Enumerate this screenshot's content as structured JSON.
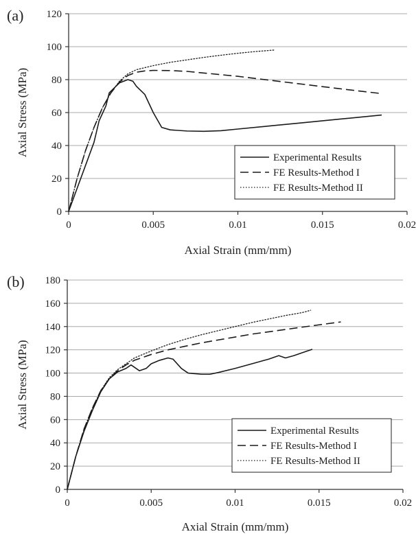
{
  "chart_data": [
    {
      "type": "line",
      "panel_label": "(a)",
      "xlabel": "Axial Strain (mm/mm)",
      "ylabel": "Axial Stress (MPa)",
      "xlim": [
        0,
        0.02
      ],
      "ylim": [
        0,
        120
      ],
      "xticks": [
        0,
        0.005,
        0.01,
        0.015,
        0.02
      ],
      "xtick_labels": [
        "0",
        "0.005",
        "0.01",
        "0.015",
        "0.02"
      ],
      "yticks": [
        0,
        20,
        40,
        60,
        80,
        100,
        120
      ],
      "ytick_labels": [
        "0",
        "20",
        "40",
        "60",
        "80",
        "100",
        "120"
      ],
      "grid": "horizontal",
      "legend_position": "bottom-right",
      "series": [
        {
          "name": "Experimental Results",
          "style": "solid",
          "points": [
            [
              0,
              0
            ],
            [
              0.0005,
              14
            ],
            [
              0.001,
              28
            ],
            [
              0.0015,
              42
            ],
            [
              0.0018,
              55
            ],
            [
              0.0022,
              64
            ],
            [
              0.0024,
              72
            ],
            [
              0.003,
              78
            ],
            [
              0.0035,
              80
            ],
            [
              0.0038,
              79
            ],
            [
              0.004,
              76
            ],
            [
              0.0045,
              71
            ],
            [
              0.005,
              60
            ],
            [
              0.0055,
              51
            ],
            [
              0.006,
              49.5
            ],
            [
              0.007,
              48.8
            ],
            [
              0.008,
              48.6
            ],
            [
              0.009,
              49
            ],
            [
              0.01,
              50
            ],
            [
              0.012,
              52
            ],
            [
              0.014,
              54
            ],
            [
              0.016,
              56
            ],
            [
              0.0185,
              58.5
            ]
          ]
        },
        {
          "name": "FE Results-Method I",
          "style": "dashed",
          "points": [
            [
              0,
              0
            ],
            [
              0.0005,
              20
            ],
            [
              0.001,
              37
            ],
            [
              0.0015,
              51
            ],
            [
              0.002,
              63
            ],
            [
              0.0025,
              72
            ],
            [
              0.003,
              78.5
            ],
            [
              0.0035,
              82.5
            ],
            [
              0.004,
              84.5
            ],
            [
              0.0045,
              85.3
            ],
            [
              0.005,
              85.6
            ],
            [
              0.006,
              85.5
            ],
            [
              0.007,
              85
            ],
            [
              0.008,
              84
            ],
            [
              0.01,
              82
            ],
            [
              0.012,
              79.5
            ],
            [
              0.014,
              77
            ],
            [
              0.016,
              74.5
            ],
            [
              0.0185,
              71.5
            ]
          ]
        },
        {
          "name": "FE Results-Method II",
          "style": "dotted",
          "points": [
            [
              0,
              0
            ],
            [
              0.0005,
              20
            ],
            [
              0.001,
              37
            ],
            [
              0.0015,
              51
            ],
            [
              0.002,
              63
            ],
            [
              0.0025,
              72
            ],
            [
              0.003,
              79
            ],
            [
              0.0035,
              83.5
            ],
            [
              0.004,
              86
            ],
            [
              0.005,
              88.5
            ],
            [
              0.006,
              90.5
            ],
            [
              0.007,
              92
            ],
            [
              0.008,
              93.5
            ],
            [
              0.009,
              94.8
            ],
            [
              0.01,
              96
            ],
            [
              0.011,
              97
            ],
            [
              0.0122,
              98
            ]
          ]
        }
      ]
    },
    {
      "type": "line",
      "panel_label": "(b)",
      "xlabel": "Axial Strain (mm/mm)",
      "ylabel": "Axial Stress (MPa)",
      "xlim": [
        0,
        0.02
      ],
      "ylim": [
        0,
        180
      ],
      "xticks": [
        0,
        0.005,
        0.01,
        0.015,
        0.02
      ],
      "xtick_labels": [
        "0",
        "0.005",
        "0.01",
        "0.015",
        "0.02"
      ],
      "yticks": [
        0,
        20,
        40,
        60,
        80,
        100,
        120,
        140,
        160,
        180
      ],
      "ytick_labels": [
        "0",
        "20",
        "40",
        "60",
        "80",
        "100",
        "120",
        "140",
        "160",
        "180"
      ],
      "grid": "horizontal",
      "legend_position": "bottom-right",
      "series": [
        {
          "name": "Experimental Results",
          "style": "solid",
          "points": [
            [
              0,
              0
            ],
            [
              0.0005,
              28
            ],
            [
              0.001,
              50
            ],
            [
              0.0015,
              68
            ],
            [
              0.002,
              84
            ],
            [
              0.0025,
              95
            ],
            [
              0.003,
              101
            ],
            [
              0.0035,
              104
            ],
            [
              0.0038,
              107
            ],
            [
              0.004,
              105
            ],
            [
              0.0043,
              102
            ],
            [
              0.0047,
              104
            ],
            [
              0.005,
              108
            ],
            [
              0.0055,
              111
            ],
            [
              0.006,
              113
            ],
            [
              0.0063,
              112
            ],
            [
              0.0068,
              104
            ],
            [
              0.0072,
              100
            ],
            [
              0.008,
              99
            ],
            [
              0.0085,
              99
            ],
            [
              0.009,
              100.5
            ],
            [
              0.01,
              104
            ],
            [
              0.011,
              108
            ],
            [
              0.012,
              112
            ],
            [
              0.0126,
              115
            ],
            [
              0.013,
              113
            ],
            [
              0.0135,
              115
            ],
            [
              0.014,
              117.5
            ],
            [
              0.0146,
              120.5
            ]
          ]
        },
        {
          "name": "FE Results-Method I",
          "style": "dashed",
          "points": [
            [
              0,
              0
            ],
            [
              0.0005,
              28
            ],
            [
              0.001,
              52
            ],
            [
              0.0015,
              70
            ],
            [
              0.002,
              85
            ],
            [
              0.0025,
              95
            ],
            [
              0.003,
              102
            ],
            [
              0.0035,
              107
            ],
            [
              0.004,
              111
            ],
            [
              0.005,
              116
            ],
            [
              0.006,
              120
            ],
            [
              0.007,
              123
            ],
            [
              0.008,
              126
            ],
            [
              0.009,
              128.5
            ],
            [
              0.01,
              131
            ],
            [
              0.011,
              133.5
            ],
            [
              0.012,
              135.5
            ],
            [
              0.013,
              137.5
            ],
            [
              0.014,
              139.5
            ],
            [
              0.015,
              141.5
            ],
            [
              0.0163,
              144
            ]
          ]
        },
        {
          "name": "FE Results-Method II",
          "style": "dotted",
          "points": [
            [
              0,
              0
            ],
            [
              0.0005,
              28
            ],
            [
              0.001,
              52
            ],
            [
              0.0015,
              70
            ],
            [
              0.002,
              85
            ],
            [
              0.0025,
              96
            ],
            [
              0.003,
              103
            ],
            [
              0.0035,
              108
            ],
            [
              0.004,
              113
            ],
            [
              0.005,
              119
            ],
            [
              0.006,
              124.5
            ],
            [
              0.007,
              129
            ],
            [
              0.008,
              133
            ],
            [
              0.009,
              136.5
            ],
            [
              0.01,
              140
            ],
            [
              0.011,
              143.5
            ],
            [
              0.012,
              146.5
            ],
            [
              0.013,
              149.5
            ],
            [
              0.014,
              152
            ],
            [
              0.0145,
              154
            ]
          ]
        }
      ]
    }
  ]
}
